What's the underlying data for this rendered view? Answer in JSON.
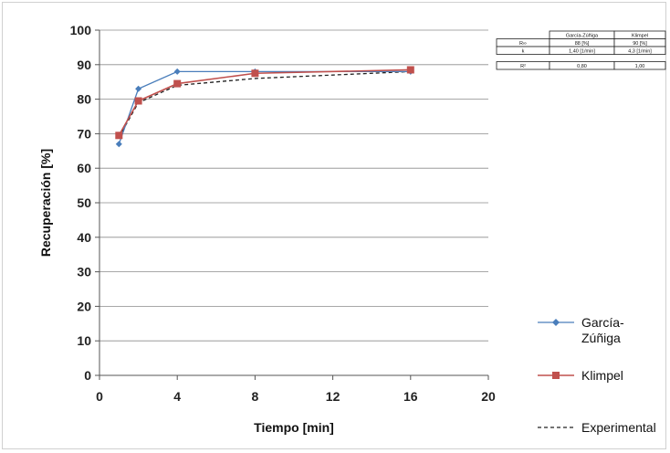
{
  "chart_data": {
    "type": "line",
    "xlabel": "Tiempo [min]",
    "ylabel": "Recuperación [%]",
    "xlim": [
      0,
      20
    ],
    "ylim": [
      0,
      100
    ],
    "xticks": [
      0,
      4,
      8,
      12,
      16,
      20
    ],
    "yticks": [
      0,
      10,
      20,
      30,
      40,
      50,
      60,
      70,
      80,
      90,
      100
    ],
    "grid": "horizontal",
    "legend_position": "right",
    "series": [
      {
        "name": "García-Zúñiga",
        "style": "line-diamond",
        "color": "#4a7ebb",
        "x": [
          1,
          2,
          4,
          8,
          16
        ],
        "y": [
          67,
          83,
          88,
          88,
          88
        ]
      },
      {
        "name": "Klimpel",
        "style": "line-square",
        "color": "#c0504d",
        "x": [
          1,
          2,
          4,
          8,
          16
        ],
        "y": [
          69.5,
          79.5,
          84.5,
          87.5,
          88.5
        ]
      },
      {
        "name": "Experimental",
        "style": "dashed",
        "color": "#222222",
        "x": [
          1,
          2,
          4,
          8,
          16
        ],
        "y": [
          69,
          79,
          84,
          86,
          88
        ]
      }
    ],
    "legend_labels": [
      {
        "key": "gz",
        "lines": [
          "García-",
          "Zúñiga"
        ]
      },
      {
        "key": "kl",
        "lines": [
          "Klimpel"
        ]
      },
      {
        "key": "ex",
        "lines": [
          "Experimental"
        ]
      }
    ],
    "table": {
      "header": [
        "",
        "García-Zúñiga",
        "Klimpel"
      ],
      "rows": [
        [
          "R∞",
          "88 [%]",
          "90 [%]"
        ],
        [
          "k",
          "1,40 [1/min]",
          "4,3 [1/min]"
        ]
      ],
      "r2_row": [
        "R²",
        "0,80",
        "1,00"
      ]
    }
  }
}
